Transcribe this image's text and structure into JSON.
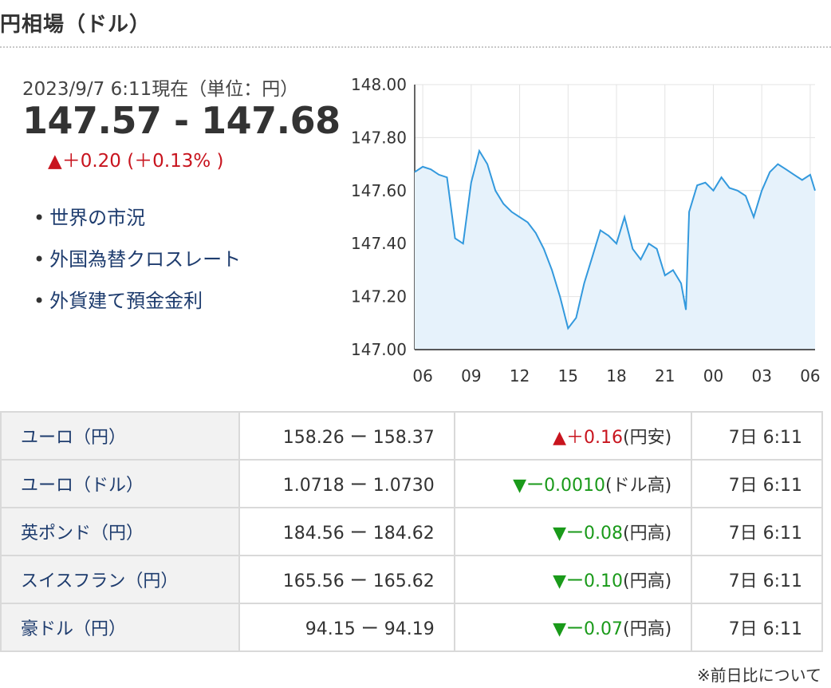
{
  "title": "円相場（ドル）",
  "quote": {
    "asof": "2023/9/7 6:11現在（単位：円）",
    "price": "147.57 - 147.68",
    "change": "▲＋0.20 (＋0.13% )"
  },
  "links": [
    "世界の市況",
    "外国為替クロスレート",
    "外貨建て預金金利"
  ],
  "chart_data": {
    "type": "area",
    "ylim": [
      147.0,
      148.0
    ],
    "y_ticks": [
      "148.00",
      "147.80",
      "147.60",
      "147.40",
      "147.20",
      "147.00"
    ],
    "x_ticks": [
      "06",
      "09",
      "12",
      "15",
      "18",
      "21",
      "00",
      "03",
      "06"
    ],
    "x": [
      5.5,
      6,
      6.5,
      7,
      7.5,
      8,
      8.5,
      9,
      9.5,
      10,
      10.5,
      11,
      11.5,
      12,
      12.5,
      13,
      13.5,
      14,
      14.5,
      15,
      15.5,
      16,
      16.5,
      17,
      17.5,
      18,
      18.5,
      19,
      19.5,
      20,
      20.5,
      21,
      21.5,
      22,
      22.3,
      22.5,
      23,
      23.5,
      24,
      24.5,
      25,
      25.5,
      26,
      26.5,
      27,
      27.5,
      28,
      28.5,
      29,
      29.5,
      30,
      30.3
    ],
    "values": [
      147.67,
      147.69,
      147.68,
      147.66,
      147.65,
      147.42,
      147.4,
      147.63,
      147.75,
      147.7,
      147.6,
      147.55,
      147.52,
      147.5,
      147.48,
      147.44,
      147.38,
      147.3,
      147.2,
      147.08,
      147.12,
      147.25,
      147.35,
      147.45,
      147.43,
      147.4,
      147.5,
      147.38,
      147.34,
      147.4,
      147.38,
      147.28,
      147.3,
      147.25,
      147.15,
      147.52,
      147.62,
      147.63,
      147.6,
      147.65,
      147.61,
      147.6,
      147.58,
      147.5,
      147.6,
      147.67,
      147.7,
      147.68,
      147.66,
      147.64,
      147.66,
      147.6
    ],
    "line_color": "#3399dd",
    "fill_color": "#e6f2fb",
    "grid": true
  },
  "table": [
    {
      "name": "ユーロ（円）",
      "bidask": "158.26 ー 158.37",
      "mark": "▲",
      "change": "＋0.16",
      "suffix": "(円安)",
      "dir": "up",
      "time": "7日 6:11"
    },
    {
      "name": "ユーロ（ドル）",
      "bidask": "1.0718 ー 1.0730",
      "mark": "▼",
      "change": "ー0.0010",
      "suffix": "(ドル高)",
      "dir": "down",
      "time": "7日 6:11"
    },
    {
      "name": "英ポンド（円）",
      "bidask": "184.56 ー 184.62",
      "mark": "▼",
      "change": "ー0.08",
      "suffix": "(円高)",
      "dir": "down",
      "time": "7日 6:11"
    },
    {
      "name": "スイスフラン（円）",
      "bidask": "165.56 ー 165.62",
      "mark": "▼",
      "change": "ー0.10",
      "suffix": "(円高)",
      "dir": "down",
      "time": "7日 6:11"
    },
    {
      "name": "豪ドル（円）",
      "bidask": "94.15 ー 94.19",
      "mark": "▼",
      "change": "ー0.07",
      "suffix": "(円高)",
      "dir": "down",
      "time": "7日 6:11"
    }
  ],
  "note": "※前日比について",
  "colors": {
    "up": "#c8141e",
    "down": "#1a9a1a",
    "link": "#1e3c6e"
  }
}
